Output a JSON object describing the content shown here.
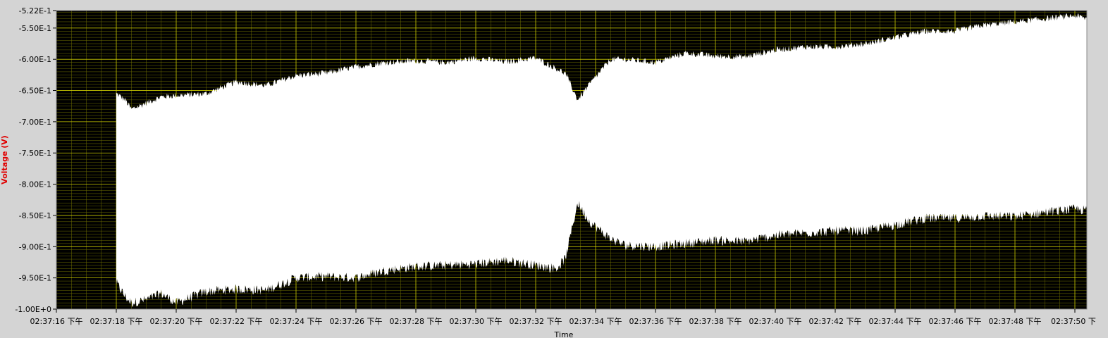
{
  "chart_data": {
    "type": "area",
    "xlabel": "Time",
    "ylabel": "Voltage (V)",
    "x_range_seconds": [
      16,
      50.4
    ],
    "ylim": [
      -1.0,
      -0.522
    ],
    "y_ticks": [
      {
        "value": -0.522,
        "label": "-5.22E-1"
      },
      {
        "value": -0.55,
        "label": "-5.50E-1"
      },
      {
        "value": -0.6,
        "label": "-6.00E-1"
      },
      {
        "value": -0.65,
        "label": "-6.50E-1"
      },
      {
        "value": -0.7,
        "label": "-7.00E-1"
      },
      {
        "value": -0.75,
        "label": "-7.50E-1"
      },
      {
        "value": -0.8,
        "label": "-8.00E-1"
      },
      {
        "value": -0.85,
        "label": "-8.50E-1"
      },
      {
        "value": -0.9,
        "label": "-9.00E-1"
      },
      {
        "value": -0.95,
        "label": "-9.50E-1"
      },
      {
        "value": -1.0,
        "label": "-1.00E+0"
      }
    ],
    "x_ticks": [
      {
        "value": 16,
        "label": "02:37:16 下午"
      },
      {
        "value": 18,
        "label": "02:37:18 下午"
      },
      {
        "value": 20,
        "label": "02:37:20 下午"
      },
      {
        "value": 22,
        "label": "02:37:22 下午"
      },
      {
        "value": 24,
        "label": "02:37:24 下午"
      },
      {
        "value": 26,
        "label": "02:37:26 下午"
      },
      {
        "value": 28,
        "label": "02:37:28 下午"
      },
      {
        "value": 30,
        "label": "02:37:30 下午"
      },
      {
        "value": 32,
        "label": "02:37:32 下午"
      },
      {
        "value": 34,
        "label": "02:37:34 下午"
      },
      {
        "value": 36,
        "label": "02:37:36 下午"
      },
      {
        "value": 38,
        "label": "02:37:38 下午"
      },
      {
        "value": 40,
        "label": "02:37:40 下午"
      },
      {
        "value": 42,
        "label": "02:37:42 下午"
      },
      {
        "value": 44,
        "label": "02:37:44 下午"
      },
      {
        "value": 46,
        "label": "02:37:46 下午"
      },
      {
        "value": 48,
        "label": "02:37:48 下午"
      },
      {
        "value": 50,
        "label": "02:37:50 下"
      }
    ],
    "series": [
      {
        "x": [
          18.0,
          18.3,
          18.5,
          19.0,
          19.5,
          20.0,
          21.0,
          22.0,
          23.0,
          24.0,
          25.0,
          26.0,
          27.0,
          28.0,
          29.0,
          30.0,
          31.0,
          32.0,
          32.7,
          33.0,
          33.4,
          33.8,
          34.5,
          35.0,
          36.0,
          37.0,
          38.0,
          39.0,
          40.0,
          41.0,
          42.0,
          43.0,
          44.0,
          45.0,
          46.0,
          47.0,
          48.0,
          49.0,
          50.0,
          50.4
        ],
        "upper": [
          -0.655,
          -0.665,
          -0.68,
          -0.67,
          -0.66,
          -0.658,
          -0.655,
          -0.636,
          -0.642,
          -0.626,
          -0.622,
          -0.612,
          -0.605,
          -0.602,
          -0.605,
          -0.598,
          -0.604,
          -0.598,
          -0.615,
          -0.623,
          -0.665,
          -0.64,
          -0.6,
          -0.6,
          -0.605,
          -0.59,
          -0.595,
          -0.596,
          -0.585,
          -0.58,
          -0.58,
          -0.575,
          -0.565,
          -0.555,
          -0.555,
          -0.545,
          -0.54,
          -0.535,
          -0.53,
          -0.535
        ],
        "lower": [
          -0.958,
          -0.98,
          -0.99,
          -0.985,
          -0.975,
          -0.99,
          -0.972,
          -0.968,
          -0.97,
          -0.95,
          -0.948,
          -0.95,
          -0.938,
          -0.932,
          -0.93,
          -0.928,
          -0.922,
          -0.93,
          -0.935,
          -0.918,
          -0.83,
          -0.86,
          -0.888,
          -0.898,
          -0.9,
          -0.895,
          -0.89,
          -0.892,
          -0.882,
          -0.878,
          -0.875,
          -0.875,
          -0.865,
          -0.855,
          -0.855,
          -0.851,
          -0.852,
          -0.845,
          -0.84,
          -0.842
        ]
      }
    ],
    "colors": {
      "plot_background": "#000000",
      "fill": "#ffffff",
      "major_grid": "#c8c800",
      "minor_grid": "#6e6e00",
      "ylabel": "#e00000",
      "frame": "#d4d4d4"
    },
    "grid": true
  }
}
